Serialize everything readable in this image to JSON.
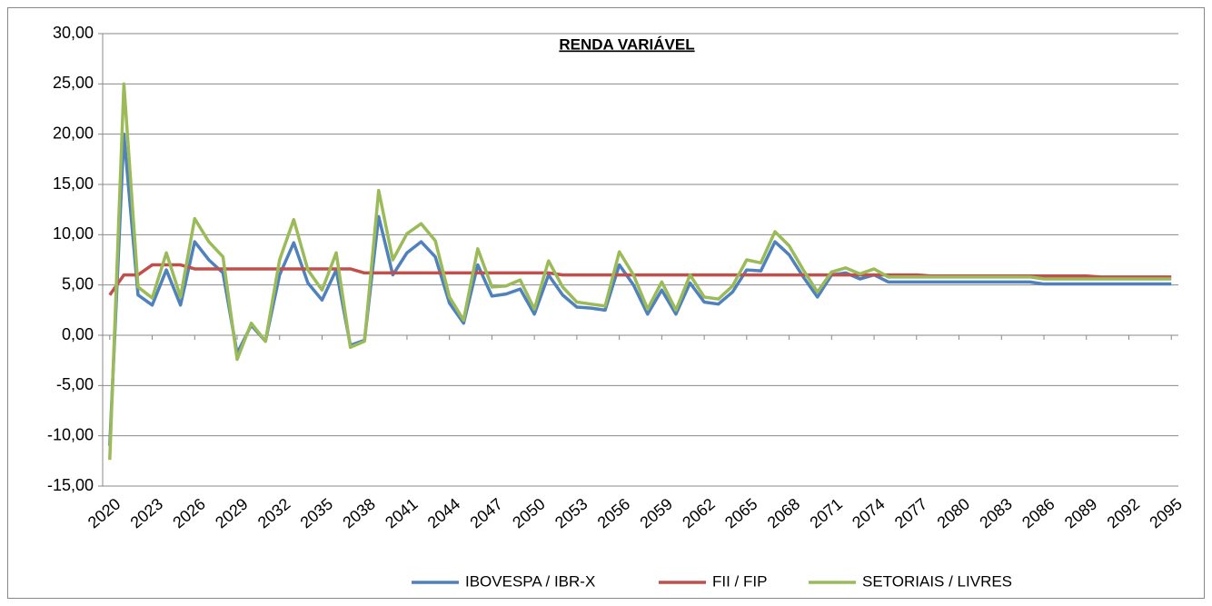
{
  "chart_data": {
    "type": "line",
    "title": "RENDA VARIÁVEL",
    "x": [
      2020,
      2021,
      2022,
      2023,
      2024,
      2025,
      2026,
      2027,
      2028,
      2029,
      2030,
      2031,
      2032,
      2033,
      2034,
      2035,
      2036,
      2037,
      2038,
      2039,
      2040,
      2041,
      2042,
      2043,
      2044,
      2045,
      2046,
      2047,
      2048,
      2049,
      2050,
      2051,
      2052,
      2053,
      2054,
      2055,
      2056,
      2057,
      2058,
      2059,
      2060,
      2061,
      2062,
      2063,
      2064,
      2065,
      2066,
      2067,
      2068,
      2069,
      2070,
      2071,
      2072,
      2073,
      2074,
      2075,
      2076,
      2077,
      2078,
      2079,
      2080,
      2081,
      2082,
      2083,
      2084,
      2085,
      2086,
      2087,
      2088,
      2089,
      2090,
      2091,
      2092,
      2093,
      2094,
      2095
    ],
    "xlim": [
      2019.5,
      2095.5
    ],
    "xticks": [
      2020,
      2023,
      2026,
      2029,
      2032,
      2035,
      2038,
      2041,
      2044,
      2047,
      2050,
      2053,
      2056,
      2059,
      2062,
      2065,
      2068,
      2071,
      2074,
      2077,
      2080,
      2083,
      2086,
      2089,
      2092,
      2095
    ],
    "ylim": [
      -15,
      30
    ],
    "yticks": [
      {
        "value": -15,
        "label": "-15,00"
      },
      {
        "value": -10,
        "label": "-10,00"
      },
      {
        "value": -5,
        "label": "-5,00"
      },
      {
        "value": 0,
        "label": "0,00"
      },
      {
        "value": 5,
        "label": "5,00"
      },
      {
        "value": 10,
        "label": "10,00"
      },
      {
        "value": 15,
        "label": "15,00"
      },
      {
        "value": 20,
        "label": "20,00"
      },
      {
        "value": 25,
        "label": "25,00"
      },
      {
        "value": 30,
        "label": "30,00"
      }
    ],
    "grid": true,
    "legend": "bottom",
    "series": [
      {
        "name": "IBOVESPA / IBR-X",
        "color": "#4f81bd",
        "values": [
          -11,
          20,
          4,
          3,
          6.5,
          3,
          9.3,
          7.5,
          6.2,
          -1.8,
          1,
          -0.6,
          6,
          9.2,
          5.2,
          3.5,
          6.5,
          -1,
          -0.5,
          11.8,
          6,
          8.2,
          9.3,
          7.8,
          3.2,
          1.2,
          7,
          3.9,
          4.1,
          4.6,
          2.1,
          6,
          4,
          2.8,
          2.7,
          2.5,
          7,
          5,
          2.1,
          4.5,
          2.1,
          5.2,
          3.3,
          3.1,
          4.3,
          6.5,
          6.4,
          9.3,
          8,
          5.8,
          3.8,
          6,
          6.2,
          5.6,
          6,
          5.3,
          5.3,
          5.3,
          5.3,
          5.3,
          5.3,
          5.3,
          5.3,
          5.3,
          5.3,
          5.3,
          5.1,
          5.1,
          5.1,
          5.1,
          5.1,
          5.1,
          5.1,
          5.1,
          5.1,
          5.1
        ]
      },
      {
        "name": "FII / FIP",
        "color": "#c0504d",
        "values": [
          4,
          6,
          6,
          7,
          7,
          7,
          6.6,
          6.6,
          6.6,
          6.6,
          6.6,
          6.6,
          6.6,
          6.6,
          6.6,
          6.6,
          6.6,
          6.6,
          6.2,
          6.2,
          6.2,
          6.2,
          6.2,
          6.2,
          6.2,
          6.2,
          6.2,
          6.2,
          6.2,
          6.2,
          6.2,
          6.2,
          6,
          6,
          6,
          6,
          6,
          6,
          6,
          6,
          6,
          6,
          6,
          6,
          6,
          6,
          6,
          6,
          6,
          6,
          6,
          6,
          6,
          6,
          6,
          6,
          6,
          6,
          5.9,
          5.9,
          5.9,
          5.9,
          5.9,
          5.9,
          5.9,
          5.9,
          5.9,
          5.9,
          5.9,
          5.9,
          5.8,
          5.8,
          5.8,
          5.8,
          5.8,
          5.8
        ]
      },
      {
        "name": "SETORIAIS / LIVRES",
        "color": "#9bbb59",
        "values": [
          -12.4,
          25,
          4.8,
          3.7,
          8.2,
          3.8,
          11.6,
          9.3,
          7.8,
          -2.4,
          1.2,
          -0.6,
          7.5,
          11.5,
          6.5,
          4.5,
          8.2,
          -1.2,
          -0.6,
          14.4,
          7.5,
          10.1,
          11.1,
          9.4,
          3.8,
          1.5,
          8.6,
          4.8,
          4.9,
          5.5,
          2.6,
          7.4,
          4.8,
          3.3,
          3.1,
          2.9,
          8.3,
          6,
          2.6,
          5.3,
          2.5,
          6,
          3.8,
          3.6,
          4.9,
          7.5,
          7.2,
          10.3,
          8.9,
          6.5,
          4.3,
          6.3,
          6.7,
          6.1,
          6.6,
          5.8,
          5.8,
          5.8,
          5.8,
          5.8,
          5.8,
          5.8,
          5.8,
          5.8,
          5.8,
          5.8,
          5.6,
          5.6,
          5.6,
          5.6,
          5.6,
          5.6,
          5.6,
          5.6,
          5.6,
          5.6
        ]
      }
    ]
  }
}
